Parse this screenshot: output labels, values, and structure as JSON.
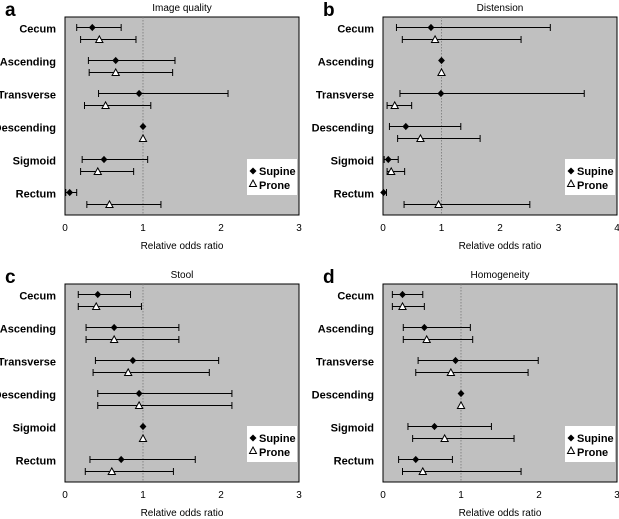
{
  "chart_data": [
    {
      "type": "forest",
      "panel_letter": "a",
      "title": "Image quality",
      "xlabel": "Relative  odds ratio",
      "xlim": [
        0,
        3
      ],
      "xticks": [
        "0",
        "1",
        "2",
        "3"
      ],
      "reference_line": 1,
      "legend": {
        "placement": "bottom-right",
        "entries": [
          "Supine",
          "Prone"
        ]
      },
      "categories": [
        "Cecum",
        "Ascending",
        "Transverse",
        "Descending",
        "Sigmoid",
        "Rectum"
      ],
      "series": [
        {
          "name": "Supine",
          "marker": "diamond",
          "values": [
            0.35,
            0.65,
            0.95,
            1.0,
            0.5,
            0.06
          ],
          "ci_low": [
            0.15,
            0.3,
            0.43,
            1.0,
            0.22,
            0.01
          ],
          "ci_high": [
            0.72,
            1.41,
            2.09,
            1.0,
            1.06,
            0.15
          ]
        },
        {
          "name": "Prone",
          "marker": "triangle",
          "values": [
            0.44,
            0.65,
            0.52,
            1.0,
            0.42,
            0.57
          ],
          "ci_low": [
            0.2,
            0.31,
            0.25,
            1.0,
            0.2,
            0.28
          ],
          "ci_high": [
            0.91,
            1.38,
            1.1,
            1.0,
            0.88,
            1.23
          ]
        }
      ]
    },
    {
      "type": "forest",
      "panel_letter": "b",
      "title": "Distension",
      "xlabel": "Relative  odds ratio",
      "xlim": [
        0,
        4
      ],
      "xticks": [
        "0",
        "1",
        "2",
        "3",
        "4"
      ],
      "reference_line": 1,
      "legend": {
        "placement": "bottom-right",
        "entries": [
          "Supine",
          "Prone"
        ]
      },
      "categories": [
        "Cecum",
        "Ascending",
        "Transverse",
        "Descending",
        "Sigmoid",
        "Rectum"
      ],
      "series": [
        {
          "name": "Supine",
          "marker": "diamond",
          "values": [
            0.82,
            1.0,
            0.99,
            0.39,
            0.09,
            0.01
          ],
          "ci_low": [
            0.23,
            1.0,
            0.29,
            0.11,
            0.02,
            0.0
          ],
          "ci_high": [
            2.86,
            1.0,
            3.44,
            1.33,
            0.26,
            0.06
          ]
        },
        {
          "name": "Prone",
          "marker": "triangle",
          "values": [
            0.89,
            1.0,
            0.2,
            0.64,
            0.14,
            0.95
          ],
          "ci_low": [
            0.33,
            1.0,
            0.07,
            0.25,
            0.07,
            0.36
          ],
          "ci_high": [
            2.36,
            1.0,
            0.49,
            1.66,
            0.37,
            2.51
          ]
        }
      ]
    },
    {
      "type": "forest",
      "panel_letter": "c",
      "title": "Stool",
      "xlabel": "Relative  odds ratio",
      "xlim": [
        0,
        3
      ],
      "xticks": [
        "0",
        "1",
        "2",
        "3"
      ],
      "reference_line": 1,
      "legend": {
        "placement": "bottom-right",
        "entries": [
          "Supine",
          "Prone"
        ]
      },
      "categories": [
        "Cecum",
        "Ascending",
        "Transverse",
        "Descending",
        "Sigmoid",
        "Rectum"
      ],
      "series": [
        {
          "name": "Supine",
          "marker": "diamond",
          "values": [
            0.42,
            0.63,
            0.87,
            0.95,
            1.0,
            0.72
          ],
          "ci_low": [
            0.17,
            0.27,
            0.39,
            0.42,
            1.0,
            0.32
          ],
          "ci_high": [
            0.84,
            1.46,
            1.97,
            2.14,
            1.0,
            1.67
          ]
        },
        {
          "name": "Prone",
          "marker": "triangle",
          "values": [
            0.4,
            0.63,
            0.81,
            0.95,
            1.0,
            0.6
          ],
          "ci_low": [
            0.17,
            0.27,
            0.36,
            0.42,
            1.0,
            0.26
          ],
          "ci_high": [
            0.98,
            1.46,
            1.85,
            2.14,
            1.0,
            1.39
          ]
        }
      ]
    },
    {
      "type": "forest",
      "panel_letter": "d",
      "title": "Homogeneity",
      "xlabel": "Relative  odds ratio",
      "xlim": [
        0,
        3
      ],
      "xticks": [
        "0",
        "1",
        "2",
        "3"
      ],
      "reference_line": 1,
      "legend": {
        "placement": "bottom-right",
        "entries": [
          "Supine",
          "Prone"
        ]
      },
      "categories": [
        "Cecum",
        "Ascending",
        "Transverse",
        "Descending",
        "Sigmoid",
        "Rectum"
      ],
      "series": [
        {
          "name": "Supine",
          "marker": "diamond",
          "values": [
            0.25,
            0.53,
            0.93,
            1.0,
            0.66,
            0.42
          ],
          "ci_low": [
            0.12,
            0.26,
            0.45,
            1.0,
            0.32,
            0.2
          ],
          "ci_high": [
            0.51,
            1.12,
            1.99,
            1.0,
            1.39,
            0.89
          ]
        },
        {
          "name": "Prone",
          "marker": "triangle",
          "values": [
            0.25,
            0.56,
            0.87,
            1.0,
            0.79,
            0.51
          ],
          "ci_low": [
            0.12,
            0.26,
            0.42,
            1.0,
            0.38,
            0.25
          ],
          "ci_high": [
            0.53,
            1.15,
            1.86,
            1.0,
            1.68,
            1.77
          ]
        }
      ]
    }
  ],
  "colors": {
    "plot_bg": "#c0c0c0",
    "frame": "#000000",
    "ci_line": "#000000"
  }
}
